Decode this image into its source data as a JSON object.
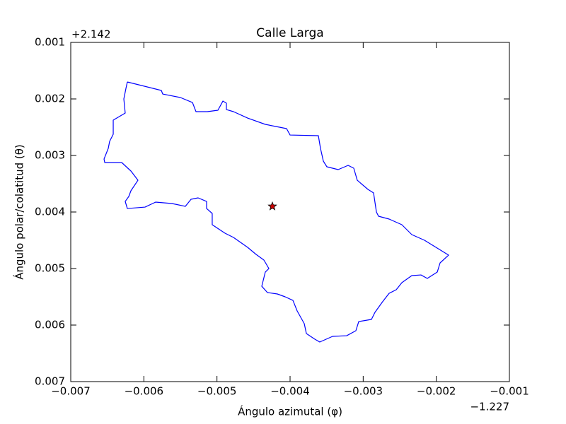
{
  "chart_data": {
    "type": "line",
    "title": "Calle Larga",
    "xlabel": "Ángulo azimutal (φ)",
    "ylabel": "Ángulo polar/colatitud (θ)",
    "x_offset": "−1.227",
    "y_offset": "+2.142",
    "xlim": [
      -0.007,
      -0.001
    ],
    "ylim": [
      0.007,
      0.001
    ],
    "xticks": [
      {
        "value": -0.007,
        "label": "−0.007"
      },
      {
        "value": -0.006,
        "label": "−0.006"
      },
      {
        "value": -0.005,
        "label": "−0.005"
      },
      {
        "value": -0.004,
        "label": "−0.004"
      },
      {
        "value": -0.003,
        "label": "−0.003"
      },
      {
        "value": -0.002,
        "label": "−0.002"
      },
      {
        "value": -0.001,
        "label": "−0.001"
      }
    ],
    "yticks": [
      0.001,
      0.002,
      0.003,
      0.004,
      0.005,
      0.006,
      0.007
    ],
    "series": [
      {
        "color": "#0000ff",
        "x": [
          -0.006226,
          -0.005761,
          -0.005742,
          -0.0055,
          -0.005335,
          -0.005287,
          -0.005132,
          -0.004987,
          -0.004919,
          -0.004871,
          -0.004871,
          -0.004774,
          -0.004581,
          -0.004339,
          -0.004145,
          -0.004048,
          -0.004,
          -0.003613,
          -0.003584,
          -0.003545,
          -0.003497,
          -0.003342,
          -0.003206,
          -0.003129,
          -0.003081,
          -0.002935,
          -0.002858,
          -0.002819,
          -0.00279,
          -0.002645,
          -0.002471,
          -0.002335,
          -0.002161,
          -0.001832,
          -0.001948,
          -0.001987,
          -0.002123,
          -0.00221,
          -0.002335,
          -0.002471,
          -0.002548,
          -0.002645,
          -0.002742,
          -0.002839,
          -0.002887,
          -0.003061,
          -0.0031,
          -0.003226,
          -0.003419,
          -0.003594,
          -0.003661,
          -0.003777,
          -0.003806,
          -0.003903,
          -0.003961,
          -0.004068,
          -0.004174,
          -0.00431,
          -0.004387,
          -0.004339,
          -0.00429,
          -0.004358,
          -0.004465,
          -0.004581,
          -0.004774,
          -0.00489,
          -0.005065,
          -0.005065,
          -0.005142,
          -0.005142,
          -0.005258,
          -0.005355,
          -0.005432,
          -0.005616,
          -0.005839,
          -0.005984,
          -0.006226,
          -0.006255,
          -0.006206,
          -0.006177,
          -0.006081,
          -0.006177,
          -0.006303,
          -0.006535,
          -0.006545,
          -0.006487,
          -0.006468,
          -0.006419,
          -0.006419,
          -0.006255,
          -0.006274,
          -0.006245,
          -0.006226
        ],
        "values": [
          0.0017,
          0.00185,
          0.001913,
          0.001975,
          0.002063,
          0.002225,
          0.002225,
          0.0022,
          0.002038,
          0.002075,
          0.002188,
          0.002225,
          0.002338,
          0.00245,
          0.0025,
          0.002525,
          0.002638,
          0.00265,
          0.002875,
          0.0031,
          0.0032,
          0.00325,
          0.003175,
          0.003225,
          0.003438,
          0.0036,
          0.003663,
          0.004,
          0.004075,
          0.004125,
          0.004225,
          0.0044,
          0.0045,
          0.004763,
          0.0049,
          0.005063,
          0.005175,
          0.005113,
          0.005125,
          0.00525,
          0.005375,
          0.005438,
          0.0056,
          0.005775,
          0.0059,
          0.005938,
          0.0061,
          0.006188,
          0.0062,
          0.0063,
          0.00625,
          0.00615,
          0.005975,
          0.00575,
          0.005563,
          0.0055,
          0.00545,
          0.005425,
          0.005313,
          0.005063,
          0.005,
          0.00485,
          0.00475,
          0.004625,
          0.00445,
          0.004375,
          0.004225,
          0.004025,
          0.003938,
          0.003813,
          0.00375,
          0.003775,
          0.0039,
          0.00385,
          0.003825,
          0.003913,
          0.003938,
          0.003813,
          0.003725,
          0.003625,
          0.003438,
          0.003275,
          0.003125,
          0.003125,
          0.003063,
          0.002875,
          0.00275,
          0.002625,
          0.002375,
          0.00225,
          0.002,
          0.001813,
          0.0017
        ]
      },
      {
        "color": "#cc0000",
        "marker": "star",
        "x": [
          -0.004242
        ],
        "values": [
          0.0039
        ]
      }
    ]
  }
}
